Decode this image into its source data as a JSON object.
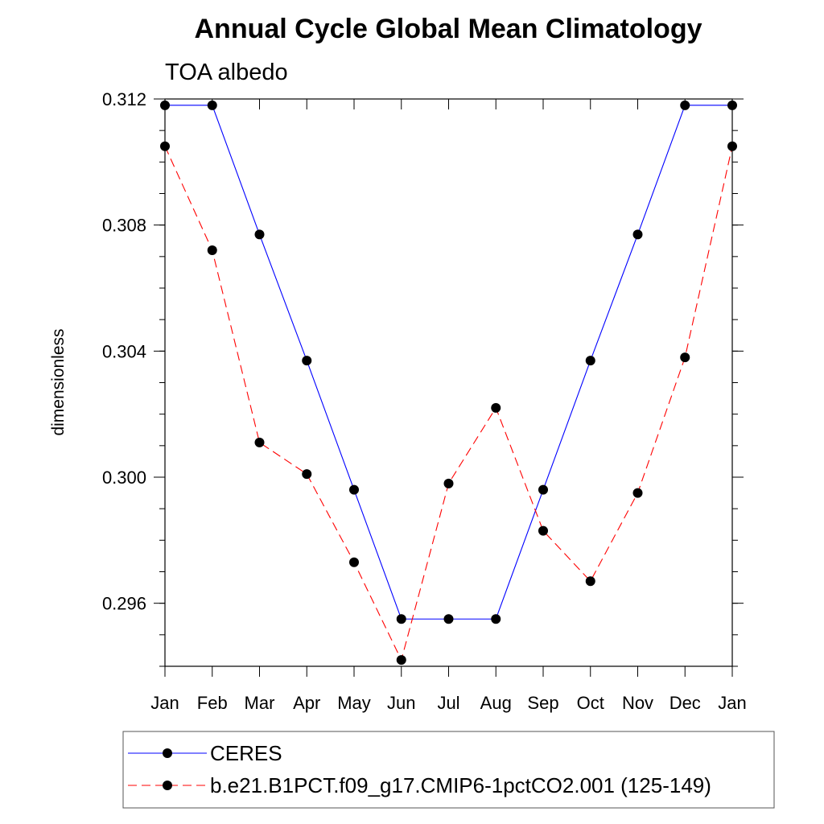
{
  "chart_data": {
    "type": "line",
    "title": "Annual Cycle Global Mean Climatology",
    "subtitle": "TOA albedo",
    "xlabel": "",
    "ylabel": "dimensionless",
    "categories": [
      "Jan",
      "Feb",
      "Mar",
      "Apr",
      "May",
      "Jun",
      "Jul",
      "Aug",
      "Sep",
      "Oct",
      "Nov",
      "Dec",
      "Jan"
    ],
    "ylim": [
      0.294,
      0.312
    ],
    "y_ticks": [
      "0.312",
      "0.308",
      "0.304",
      "0.300",
      "0.296"
    ],
    "y_tick_values": [
      0.312,
      0.308,
      0.304,
      0.3,
      0.296
    ],
    "y_minor_step": 0.001,
    "grid": false,
    "legend_position": "bottom",
    "series": [
      {
        "name": "CERES",
        "color": "#0000ff",
        "dash": "solid",
        "values": [
          0.3118,
          0.3118,
          0.3077,
          0.3037,
          0.2996,
          0.2955,
          0.2955,
          0.2955,
          0.2996,
          0.3037,
          0.3077,
          0.3118,
          0.3118
        ]
      },
      {
        "name": "b.e21.B1PCT.f09_g17.CMIP6-1pctCO2.001 (125-149)",
        "color": "#ff0000",
        "dash": "dashed",
        "values": [
          0.3105,
          0.3072,
          0.3011,
          0.3001,
          0.2973,
          0.2942,
          0.2998,
          0.3022,
          0.2983,
          0.2967,
          0.2995,
          0.3038,
          0.3105
        ]
      }
    ]
  }
}
